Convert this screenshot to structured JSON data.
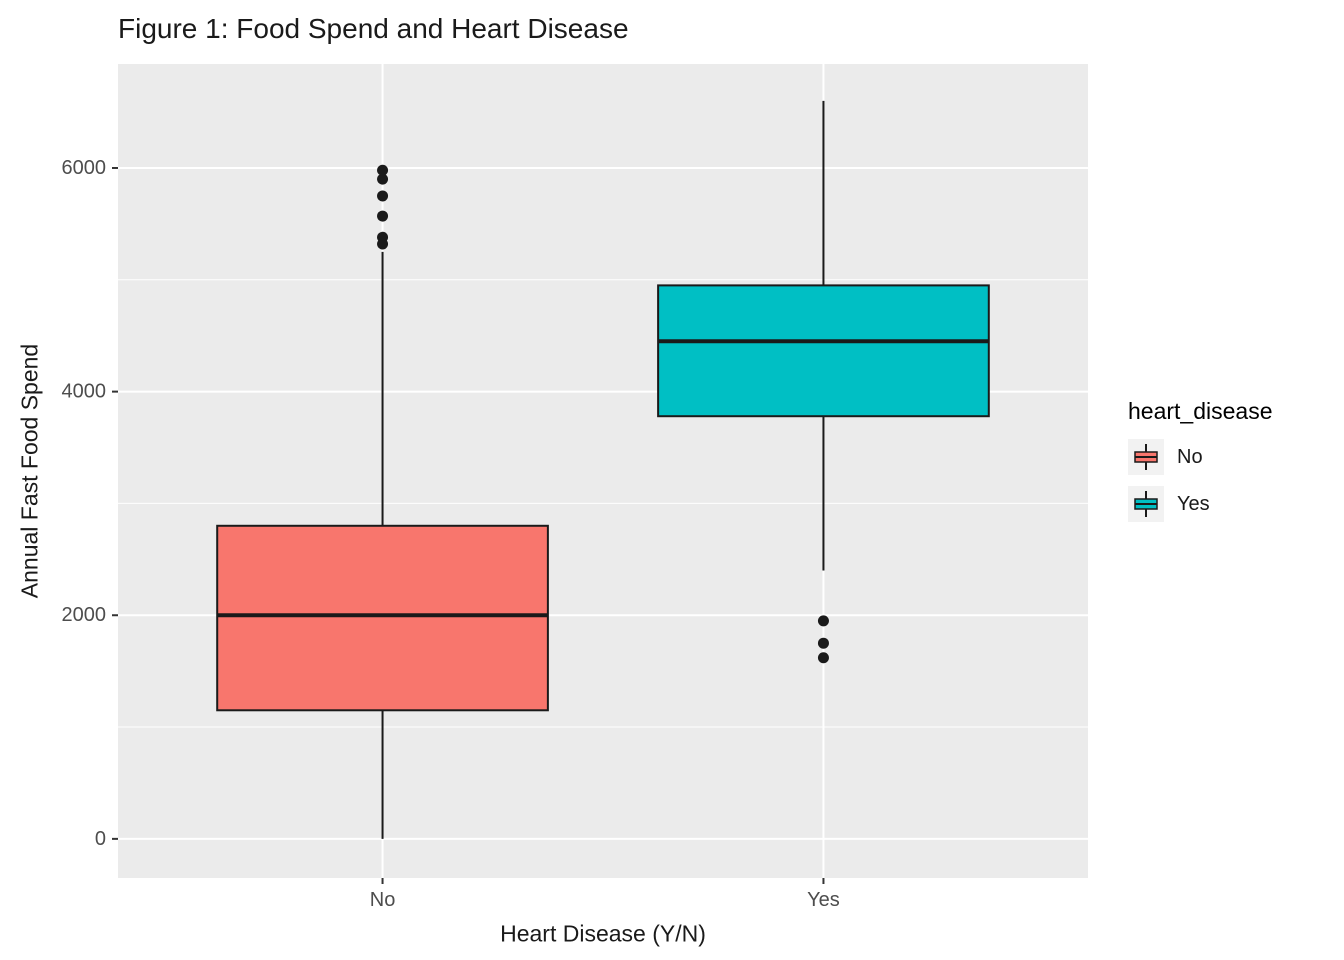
{
  "chart_data": {
    "type": "boxplot",
    "title": "Figure 1: Food Spend and Heart Disease",
    "xlabel": "Heart Disease (Y/N)",
    "ylabel": "Annual Fast Food Spend",
    "legend_title": "heart_disease",
    "legend_position": "right",
    "categories": [
      "No",
      "Yes"
    ],
    "yticks": [
      0,
      2000,
      4000,
      6000
    ],
    "minor_yticks": [
      1000,
      3000,
      5000
    ],
    "ylim": [
      -350,
      6930
    ],
    "grid": true,
    "panel_bg": "#EBEBEB",
    "grid_color": "#FFFFFF",
    "box_stroke": "#1A1A1A",
    "tick_color": "#333333",
    "axis_text_color": "#4D4D4D",
    "legend_key_bg": "#F2F2F2",
    "series": [
      {
        "name": "No",
        "color": "#F8766D",
        "whisker_low": 0,
        "q1": 1150,
        "median": 2000,
        "q3": 2800,
        "whisker_high": 5250,
        "outliers": [
          5980,
          5900,
          5750,
          5570,
          5380,
          5320
        ]
      },
      {
        "name": "Yes",
        "color": "#00BFC4",
        "whisker_low": 2400,
        "q1": 3780,
        "median": 4450,
        "q3": 4950,
        "whisker_high": 6600,
        "outliers": [
          1950,
          1750,
          1620
        ]
      }
    ]
  }
}
